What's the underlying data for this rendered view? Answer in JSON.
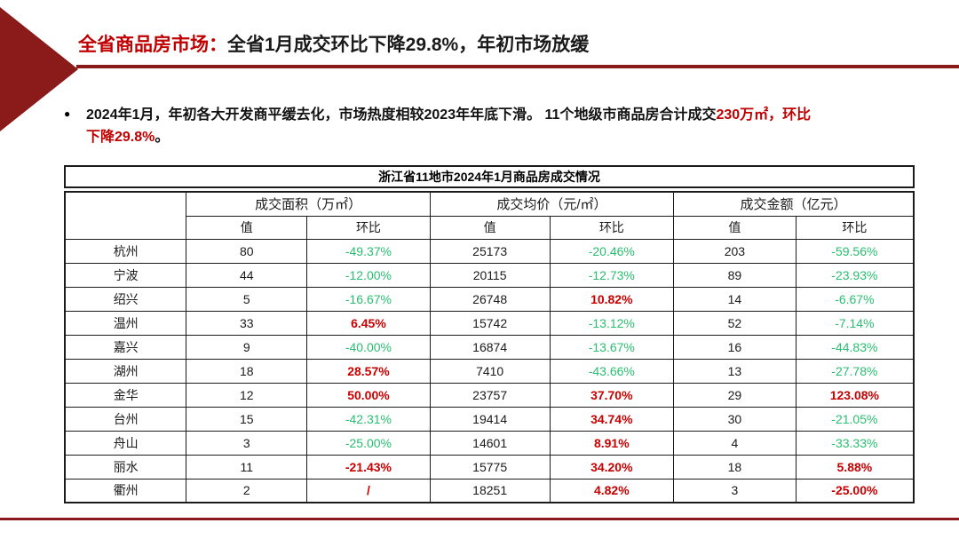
{
  "colors": {
    "accent_red": "#C00000",
    "value_red": "#C80000",
    "value_green": "#29BE70",
    "dark_red": "#8B1A1A",
    "table_border": "#1B1B1B"
  },
  "icons": {
    "bullet": "●"
  },
  "header": {
    "title_red": "全省商品房市场：",
    "title_black": "全省1月成交环比下降29.8%，年初市场放缓"
  },
  "bullet": {
    "black_1": "2024年1月，年初各大开发商平缓去化，市场热度相较2023年年底下滑。 11个地级市商品房合计成交",
    "red_1": "230万㎡，环比",
    "red_2": "下降29.8%",
    "black_2": "。"
  },
  "table": {
    "title": "浙江省11地市2024年1月商品房成交情况",
    "col_groups": [
      "成交面积（万㎡）",
      "成交均价（元/㎡）",
      "成交金额（亿元）"
    ],
    "sub_headers": [
      "值",
      "环比"
    ],
    "rows": [
      {
        "city": "杭州",
        "cells": [
          [
            "80",
            "black"
          ],
          [
            "-49.37%",
            "green"
          ],
          [
            "25173",
            "black"
          ],
          [
            "-20.46%",
            "green"
          ],
          [
            "203",
            "black"
          ],
          [
            "-59.56%",
            "green"
          ]
        ]
      },
      {
        "city": "宁波",
        "cells": [
          [
            "44",
            "black"
          ],
          [
            "-12.00%",
            "green"
          ],
          [
            "20115",
            "black"
          ],
          [
            "-12.73%",
            "green"
          ],
          [
            "89",
            "black"
          ],
          [
            "-23.93%",
            "green"
          ]
        ]
      },
      {
        "city": "绍兴",
        "cells": [
          [
            "5",
            "black"
          ],
          [
            "-16.67%",
            "green"
          ],
          [
            "26748",
            "black"
          ],
          [
            "10.82%",
            "red"
          ],
          [
            "14",
            "black"
          ],
          [
            "-6.67%",
            "green"
          ]
        ]
      },
      {
        "city": "温州",
        "cells": [
          [
            "33",
            "black"
          ],
          [
            "6.45%",
            "red"
          ],
          [
            "15742",
            "black"
          ],
          [
            "-13.12%",
            "green"
          ],
          [
            "52",
            "black"
          ],
          [
            "-7.14%",
            "green"
          ]
        ]
      },
      {
        "city": "嘉兴",
        "cells": [
          [
            "9",
            "black"
          ],
          [
            "-40.00%",
            "green"
          ],
          [
            "16874",
            "black"
          ],
          [
            "-13.67%",
            "green"
          ],
          [
            "16",
            "black"
          ],
          [
            "-44.83%",
            "green"
          ]
        ]
      },
      {
        "city": "湖州",
        "cells": [
          [
            "18",
            "black"
          ],
          [
            "28.57%",
            "red"
          ],
          [
            "7410",
            "black"
          ],
          [
            "-43.66%",
            "green"
          ],
          [
            "13",
            "black"
          ],
          [
            "-27.78%",
            "green"
          ]
        ]
      },
      {
        "city": "金华",
        "cells": [
          [
            "12",
            "black"
          ],
          [
            "50.00%",
            "red"
          ],
          [
            "23757",
            "black"
          ],
          [
            "37.70%",
            "red"
          ],
          [
            "29",
            "black"
          ],
          [
            "123.08%",
            "red"
          ]
        ]
      },
      {
        "city": "台州",
        "cells": [
          [
            "15",
            "black"
          ],
          [
            "-42.31%",
            "green"
          ],
          [
            "19414",
            "black"
          ],
          [
            "34.74%",
            "red"
          ],
          [
            "30",
            "black"
          ],
          [
            "-21.05%",
            "green"
          ]
        ]
      },
      {
        "city": "舟山",
        "cells": [
          [
            "3",
            "black"
          ],
          [
            "-25.00%",
            "green"
          ],
          [
            "14601",
            "black"
          ],
          [
            "8.91%",
            "red"
          ],
          [
            "4",
            "black"
          ],
          [
            "-33.33%",
            "green"
          ]
        ]
      },
      {
        "city": "丽水",
        "cells": [
          [
            "11",
            "black"
          ],
          [
            "-21.43%",
            "red"
          ],
          [
            "15775",
            "black"
          ],
          [
            "34.20%",
            "red"
          ],
          [
            "18",
            "black"
          ],
          [
            "5.88%",
            "red"
          ]
        ]
      },
      {
        "city": "衢州",
        "cells": [
          [
            "2",
            "black"
          ],
          [
            "/",
            "red"
          ],
          [
            "18251",
            "black"
          ],
          [
            "4.82%",
            "red"
          ],
          [
            "3",
            "black"
          ],
          [
            "-25.00%",
            "red"
          ]
        ]
      }
    ]
  }
}
